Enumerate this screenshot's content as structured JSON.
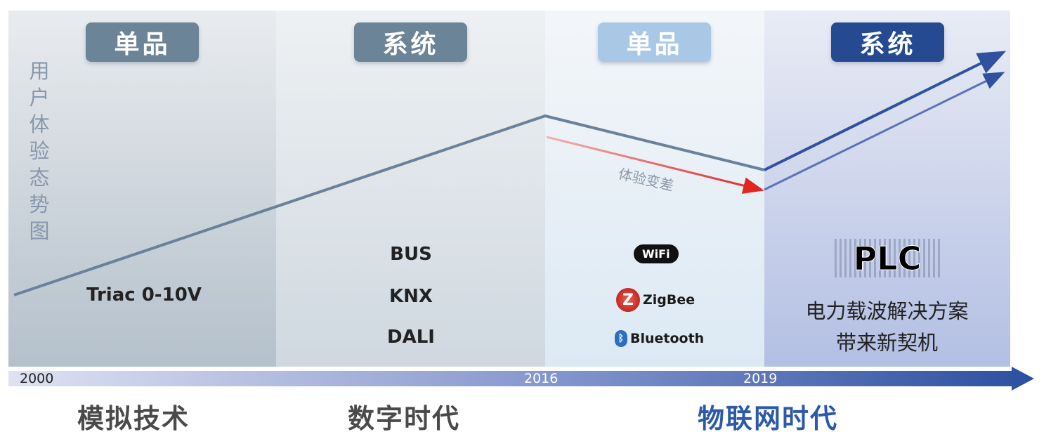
{
  "y_axis_label": "用户体验态势图",
  "stages": [
    {
      "badge": "单品",
      "badge_color": "#6c8498",
      "technologies": [
        "Triac 0-10V"
      ]
    },
    {
      "badge": "系统",
      "badge_color": "#6c8498",
      "technologies": [
        "BUS",
        "KNX",
        "DALI"
      ]
    },
    {
      "badge": "单品",
      "badge_color": "#a8c8e6",
      "technologies": [
        "WiFi",
        "ZigBee",
        "Bluetooth"
      ]
    },
    {
      "badge": "系统",
      "badge_color": "#264a92",
      "technologies": [
        "PLC"
      ],
      "description": [
        "电力载波解决方案",
        "带来新契机"
      ]
    }
  ],
  "decline_annotation": "体验变差",
  "timeline": {
    "years": [
      "2000",
      "2016",
      "2019"
    ],
    "accent": "#2b4fa0"
  },
  "eras": [
    {
      "label": "模拟技术",
      "color": "#4a4a4a"
    },
    {
      "label": "数字时代",
      "color": "#4a4a4a"
    },
    {
      "label": "物联网时代",
      "color": "#2d5aa8"
    }
  ],
  "colors": {
    "trend_line": "#6a819a",
    "decline_arrow": "#e0261f",
    "rise_arrow": "#2f52a0"
  }
}
